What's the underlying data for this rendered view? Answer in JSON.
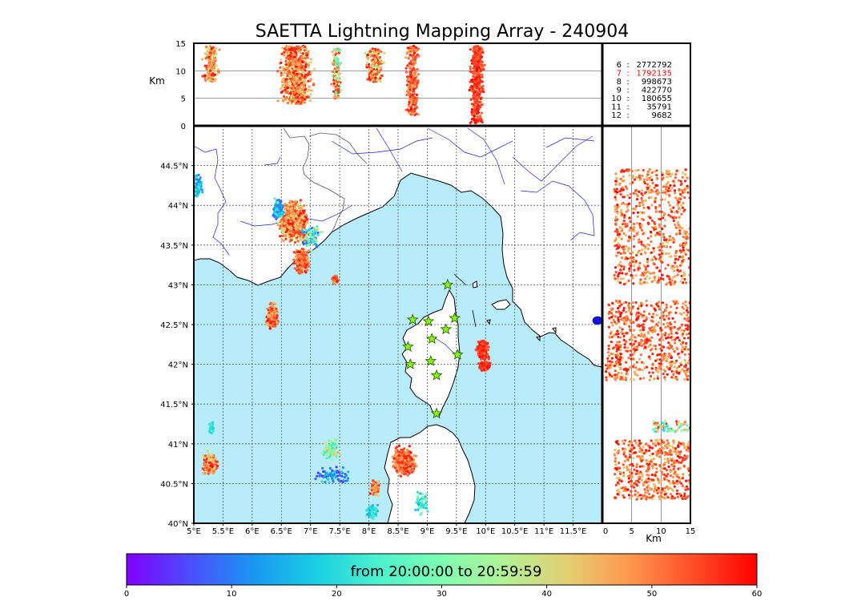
{
  "title": "SAETTA Lightning Mapping Array - 240904",
  "colors": {
    "sea": "#b8ecfb",
    "land": "#ffffff",
    "river": "#1f1fd6",
    "station_fill": "#7fff00",
    "highlight_count": "#ff0000"
  },
  "chart_data": [
    {
      "type": "scatter",
      "role": "altitude-vs-longitude",
      "ylabel": "Km",
      "ylim": [
        0,
        15
      ],
      "yticks": [
        "0",
        "5",
        "10",
        "15"
      ],
      "xlim": [
        5,
        12
      ],
      "grid": true
    },
    {
      "type": "table",
      "role": "station-count-table",
      "rows": [
        {
          "n": "6",
          "count": "2772792",
          "highlight": false
        },
        {
          "n": "7",
          "count": "1792135",
          "highlight": true
        },
        {
          "n": "8",
          "count": "998673",
          "highlight": false
        },
        {
          "n": "9",
          "count": "422770",
          "highlight": false
        },
        {
          "n": "10",
          "count": "180655",
          "highlight": false
        },
        {
          "n": "11",
          "count": "35791",
          "highlight": false
        },
        {
          "n": "12",
          "count": "9682",
          "highlight": false
        }
      ]
    },
    {
      "type": "scatter",
      "role": "plan-view-map",
      "xlim": [
        5,
        12
      ],
      "ylim": [
        40,
        45
      ],
      "xticks": [
        "5°E",
        "5.5°E",
        "6°E",
        "6.5°E",
        "7°E",
        "7.5°E",
        "8°E",
        "8.5°E",
        "9°E",
        "9.5°E",
        "10°E",
        "10.5°E",
        "11°E",
        "11.5°E"
      ],
      "yticks": [
        "40°N",
        "40.5°N",
        "41°N",
        "41.5°N",
        "42°N",
        "42.5°N",
        "43°N",
        "43.5°N",
        "44°N",
        "44.5°N"
      ],
      "grid": true,
      "stations": [
        {
          "lon": 9.35,
          "lat": 43.0
        },
        {
          "lon": 8.75,
          "lat": 42.56
        },
        {
          "lon": 9.02,
          "lat": 42.54
        },
        {
          "lon": 9.47,
          "lat": 42.58
        },
        {
          "lon": 9.32,
          "lat": 42.44
        },
        {
          "lon": 9.08,
          "lat": 42.32
        },
        {
          "lon": 8.67,
          "lat": 42.22
        },
        {
          "lon": 9.52,
          "lat": 42.12
        },
        {
          "lon": 9.06,
          "lat": 42.04
        },
        {
          "lon": 8.71,
          "lat": 42.0
        },
        {
          "lon": 9.16,
          "lat": 41.86
        },
        {
          "lon": 9.16,
          "lat": 41.38
        }
      ]
    },
    {
      "type": "scatter",
      "role": "latitude-vs-altitude",
      "xlabel": "Km",
      "xlim": [
        0,
        15
      ],
      "xticks": [
        "0",
        "5",
        "10",
        "15"
      ],
      "ylim": [
        40,
        45
      ],
      "grid": true
    },
    {
      "type": "heatmap",
      "role": "time-colorbar",
      "label": "from 20:00:00 to 20:59:59",
      "range": [
        0,
        60
      ],
      "ticks": [
        "0",
        "10",
        "20",
        "30",
        "40",
        "50",
        "60"
      ],
      "colormap": [
        "#7f00ff",
        "#4c4dfc",
        "#1996f3",
        "#19cee3",
        "#4cf2ce",
        "#7ffeb2",
        "#b2f295",
        "#e5ce72",
        "#ff964d",
        "#ff4c27",
        "#ff0000"
      ]
    }
  ]
}
